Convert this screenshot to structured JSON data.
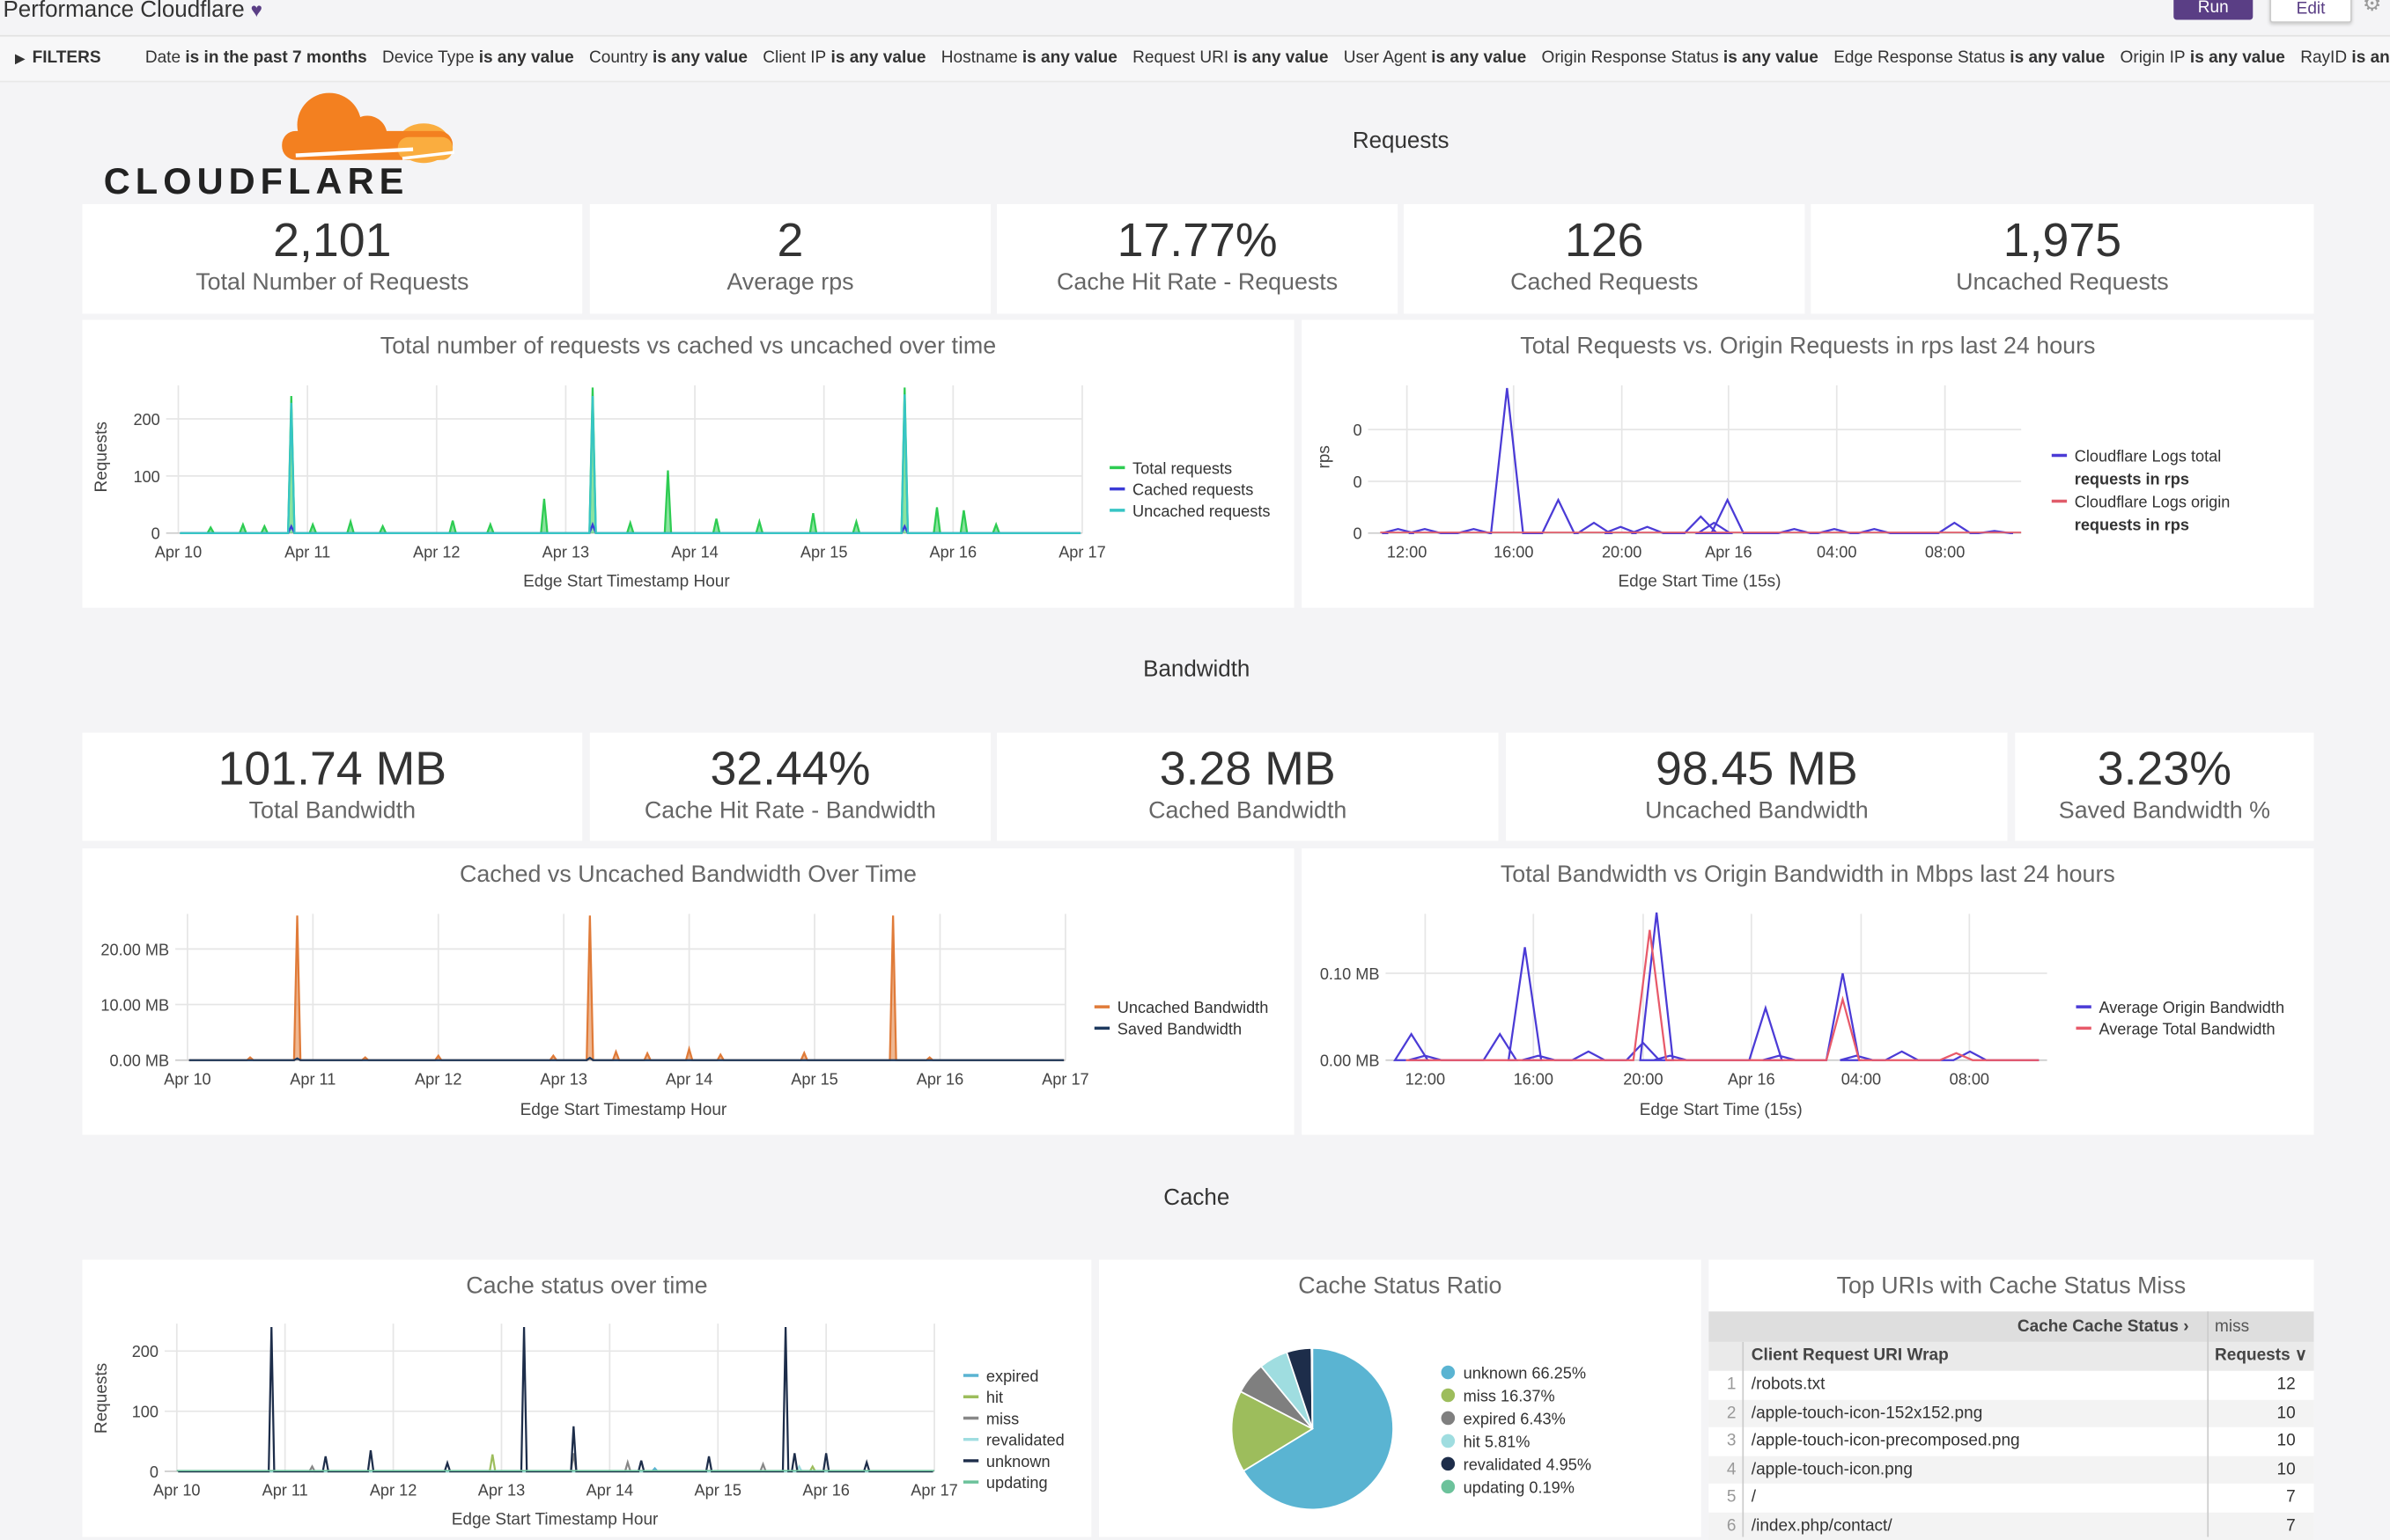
{
  "header": {
    "title": "Performance Cloudflare",
    "heart_icon": "heart-icon",
    "run_label": "Run",
    "edit_label": "Edit",
    "gear_icon": "gear-icon"
  },
  "filters": {
    "label": "FILTERS",
    "items": [
      {
        "field": "Date",
        "condition": "is in the past 7 months"
      },
      {
        "field": "Device Type",
        "condition": "is any value"
      },
      {
        "field": "Country",
        "condition": "is any value"
      },
      {
        "field": "Client IP",
        "condition": "is any value"
      },
      {
        "field": "Hostname",
        "condition": "is any value"
      },
      {
        "field": "Request URI",
        "condition": "is any value"
      },
      {
        "field": "User Agent",
        "condition": "is any value"
      },
      {
        "field": "Origin Response Status",
        "condition": "is any value"
      },
      {
        "field": "Edge Response Status",
        "condition": "is any value"
      },
      {
        "field": "Origin IP",
        "condition": "is any value"
      },
      {
        "field": "RayID",
        "condition": "is any valu..."
      }
    ]
  },
  "logo": {
    "text": "CLOUDFLARE",
    "colors": {
      "orange": "#f38020",
      "light_orange": "#faad3f"
    }
  },
  "sections": {
    "requests": "Requests",
    "bandwidth": "Bandwidth",
    "cache": "Cache"
  },
  "requests_kpis": [
    {
      "value": "2,101",
      "label": "Total Number of Requests"
    },
    {
      "value": "2",
      "label": "Average rps"
    },
    {
      "value": "17.77%",
      "label": "Cache Hit Rate - Requests"
    },
    {
      "value": "126",
      "label": "Cached Requests"
    },
    {
      "value": "1,975",
      "label": "Uncached Requests"
    }
  ],
  "bandwidth_kpis": [
    {
      "value": "101.74 MB",
      "label": "Total Bandwidth"
    },
    {
      "value": "32.44%",
      "label": "Cache Hit Rate - Bandwidth"
    },
    {
      "value": "3.28 MB",
      "label": "Cached Bandwidth"
    },
    {
      "value": "98.45 MB",
      "label": "Uncached Bandwidth"
    },
    {
      "value": "3.23%",
      "label": "Saved Bandwidth %"
    }
  ],
  "chart_data": [
    {
      "id": "requests_over_time",
      "type": "area",
      "title": "Total number of requests vs cached vs uncached over time",
      "xlabel": "Edge Start Timestamp Hour",
      "ylabel": "Requests",
      "xticks": [
        "Apr 10",
        "Apr 11",
        "Apr 12",
        "Apr 13",
        "Apr 14",
        "Apr 15",
        "Apr 16",
        "Apr 17"
      ],
      "yticks": [
        {
          "v": 0,
          "label": "0"
        },
        {
          "v": 100,
          "label": "100"
        },
        {
          "v": 200,
          "label": "200"
        }
      ],
      "legend": "right",
      "grid": true,
      "series": [
        {
          "name": "Total requests",
          "color": "#2ecc52",
          "fill": true,
          "points": [
            [
              "Apr 10 06:00",
              10
            ],
            [
              "Apr 10 12:00",
              15
            ],
            [
              "Apr 10 16:00",
              12
            ],
            [
              "Apr 10 21:00",
              240
            ],
            [
              "Apr 11 01:00",
              15
            ],
            [
              "Apr 11 08:00",
              20
            ],
            [
              "Apr 11 14:00",
              12
            ],
            [
              "Apr 12 03:00",
              22
            ],
            [
              "Apr 12 10:00",
              15
            ],
            [
              "Apr 12 20:00",
              60
            ],
            [
              "Apr 13 05:00",
              255
            ],
            [
              "Apr 13 12:00",
              18
            ],
            [
              "Apr 13 19:00",
              110
            ],
            [
              "Apr 14 04:00",
              25
            ],
            [
              "Apr 14 12:00",
              20
            ],
            [
              "Apr 14 22:00",
              35
            ],
            [
              "Apr 15 06:00",
              20
            ],
            [
              "Apr 15 15:00",
              255
            ],
            [
              "Apr 15 21:00",
              45
            ],
            [
              "Apr 16 02:00",
              40
            ],
            [
              "Apr 16 08:00",
              15
            ]
          ]
        },
        {
          "name": "Cached requests",
          "color": "#3b3bd6",
          "fill": false,
          "points": [
            [
              "Apr 10 21:00",
              12
            ],
            [
              "Apr 13 05:00",
              15
            ],
            [
              "Apr 15 15:00",
              12
            ]
          ]
        },
        {
          "name": "Uncached requests",
          "color": "#37c5c5",
          "fill": false,
          "points": [
            [
              "Apr 10 21:00",
              228
            ],
            [
              "Apr 13 05:00",
              240
            ],
            [
              "Apr 15 15:00",
              243
            ]
          ]
        }
      ]
    },
    {
      "id": "rps_24h",
      "type": "line",
      "title": "Total Requests vs. Origin Requests in rps last 24 hours",
      "xlabel": "Edge Start Time (15s)",
      "ylabel": "rps",
      "xticks": [
        "12:00",
        "16:00",
        "20:00",
        "Apr 16",
        "04:00",
        "08:00"
      ],
      "yticks": [
        {
          "v": 0,
          "label": "0"
        },
        {
          "v": 0.25,
          "label": "0"
        },
        {
          "v": 0.5,
          "label": "0"
        }
      ],
      "legend": "right",
      "grid": true,
      "series": [
        {
          "name": "Cloudflare Logs total requests in rps",
          "color": "#4b3bd6",
          "points": [
            [
              "Apr 15 11:40",
              0.02
            ],
            [
              "Apr 15 12:40",
              0.02
            ],
            [
              "Apr 15 14:30",
              0.02
            ],
            [
              "Apr 15 15:45",
              0.7
            ],
            [
              "Apr 15 17:40",
              0.16
            ],
            [
              "Apr 15 19:00",
              0.05
            ],
            [
              "Apr 15 20:00",
              0.03
            ],
            [
              "Apr 15 21:00",
              0.03
            ],
            [
              "Apr 15 23:00",
              0.08
            ],
            [
              "Apr 15 23:30",
              0.05
            ],
            [
              "Apr 16 00:00",
              0.16
            ],
            [
              "Apr 16 02:30",
              0.02
            ],
            [
              "Apr 16 04:00",
              0.02
            ],
            [
              "Apr 16 05:30",
              0.02
            ],
            [
              "Apr 16 08:30",
              0.05
            ],
            [
              "Apr 16 10:00",
              0.01
            ]
          ]
        },
        {
          "name": "Cloudflare Logs origin requests in rps",
          "color": "#e05c6a",
          "points": []
        }
      ]
    },
    {
      "id": "bandwidth_over_time",
      "type": "area",
      "title": "Cached vs Uncached Bandwidth Over Time",
      "xlabel": "Edge Start Timestamp Hour",
      "ylabel": "",
      "xticks": [
        "Apr 10",
        "Apr 11",
        "Apr 12",
        "Apr 13",
        "Apr 14",
        "Apr 15",
        "Apr 16",
        "Apr 17"
      ],
      "yticks": [
        {
          "v": 0,
          "label": "0.00 MB"
        },
        {
          "v": 10,
          "label": "10.00 MB"
        },
        {
          "v": 20,
          "label": "20.00 MB"
        }
      ],
      "legend": "right",
      "grid": true,
      "series": [
        {
          "name": "Uncached Bandwidth",
          "color": "#e07b39",
          "fill": true,
          "points": [
            [
              "Apr 10 12:00",
              0.5
            ],
            [
              "Apr 10 21:00",
              26
            ],
            [
              "Apr 11 10:00",
              0.5
            ],
            [
              "Apr 12 00:00",
              0.8
            ],
            [
              "Apr 12 22:00",
              0.8
            ],
            [
              "Apr 13 05:00",
              26
            ],
            [
              "Apr 13 10:00",
              1.5
            ],
            [
              "Apr 13 16:00",
              1.2
            ],
            [
              "Apr 14 00:00",
              2
            ],
            [
              "Apr 14 06:00",
              1
            ],
            [
              "Apr 14 22:00",
              1.3
            ],
            [
              "Apr 15 15:00",
              26
            ],
            [
              "Apr 15 22:00",
              0.5
            ]
          ]
        },
        {
          "name": "Saved Bandwidth",
          "color": "#1e3a5f",
          "fill": false,
          "points": [
            [
              "Apr 10 21:00",
              0.3
            ],
            [
              "Apr 13 05:00",
              0.4
            ]
          ]
        }
      ]
    },
    {
      "id": "bandwidth_24h",
      "type": "line",
      "title": "Total Bandwidth vs Origin Bandwidth in Mbps last 24 hours",
      "xlabel": "Edge Start Time (15s)",
      "ylabel": "",
      "xticks": [
        "12:00",
        "16:00",
        "20:00",
        "Apr 16",
        "04:00",
        "08:00"
      ],
      "yticks": [
        {
          "v": 0,
          "label": "0.00 MB"
        },
        {
          "v": 0.1,
          "label": "0.10 MB"
        }
      ],
      "legend": "right",
      "grid": true,
      "series": [
        {
          "name": "Average Origin Bandwidth",
          "color": "#4b3bd6",
          "points": [
            [
              "Apr 15 11:30",
              0.03
            ],
            [
              "Apr 15 12:00",
              0.005
            ],
            [
              "Apr 15 14:45",
              0.03
            ],
            [
              "Apr 15 15:40",
              0.13
            ],
            [
              "Apr 15 16:10",
              0.005
            ],
            [
              "Apr 15 18:00",
              0.01
            ],
            [
              "Apr 15 20:00",
              0.02
            ],
            [
              "Apr 15 20:30",
              0.17
            ],
            [
              "Apr 15 21:00",
              0.005
            ],
            [
              "Apr 16 00:30",
              0.06
            ],
            [
              "Apr 16 01:00",
              0.005
            ],
            [
              "Apr 16 03:20",
              0.1
            ],
            [
              "Apr 16 03:50",
              0.005
            ],
            [
              "Apr 16 05:30",
              0.01
            ],
            [
              "Apr 16 08:00",
              0.01
            ]
          ]
        },
        {
          "name": "Average Total Bandwidth",
          "color": "#e85a6a",
          "points": [
            [
              "Apr 15 20:15",
              0.15
            ],
            [
              "Apr 16 03:20",
              0.07
            ],
            [
              "Apr 16 07:30",
              0.008
            ]
          ]
        }
      ]
    },
    {
      "id": "cache_status_over_time",
      "type": "line",
      "title": "Cache status over time",
      "xlabel": "Edge Start Timestamp Hour",
      "ylabel": "Requests",
      "xticks": [
        "Apr 10",
        "Apr 11",
        "Apr 12",
        "Apr 13",
        "Apr 14",
        "Apr 15",
        "Apr 16",
        "Apr 17"
      ],
      "yticks": [
        {
          "v": 0,
          "label": "0"
        },
        {
          "v": 100,
          "label": "100"
        },
        {
          "v": 200,
          "label": "200"
        }
      ],
      "legend": "right",
      "grid": true,
      "series": [
        {
          "name": "expired",
          "color": "#5ab4d2",
          "points": [
            [
              "Apr 14 10:00",
              5
            ]
          ]
        },
        {
          "name": "hit",
          "color": "#9dbd5c",
          "points": [
            [
              "Apr 12 22:00",
              28
            ],
            [
              "Apr 15 21:00",
              8
            ]
          ]
        },
        {
          "name": "miss",
          "color": "#888888",
          "points": [
            [
              "Apr 11 06:00",
              8
            ],
            [
              "Apr 13 16:00",
              30
            ],
            [
              "Apr 14 04:00",
              15
            ],
            [
              "Apr 15 10:00",
              12
            ]
          ]
        },
        {
          "name": "revalidated",
          "color": "#9fdde0",
          "points": [
            [
              "Apr 15 18:00",
              8
            ]
          ]
        },
        {
          "name": "unknown",
          "color": "#1d2d4a",
          "points": [
            [
              "Apr 10 21:00",
              240
            ],
            [
              "Apr 11 09:00",
              25
            ],
            [
              "Apr 11 19:00",
              35
            ],
            [
              "Apr 12 12:00",
              14
            ],
            [
              "Apr 13 05:00",
              240
            ],
            [
              "Apr 13 16:00",
              75
            ],
            [
              "Apr 14 07:00",
              18
            ],
            [
              "Apr 14 22:00",
              25
            ],
            [
              "Apr 15 15:00",
              240
            ],
            [
              "Apr 15 17:00",
              30
            ],
            [
              "Apr 16 00:00",
              30
            ],
            [
              "Apr 16 09:00",
              15
            ]
          ]
        },
        {
          "name": "updating",
          "color": "#6cc29b",
          "points": []
        }
      ]
    },
    {
      "id": "cache_status_ratio",
      "type": "pie",
      "title": "Cache Status Ratio",
      "legend": "right",
      "slices": [
        {
          "name": "unknown",
          "value": 66.25,
          "label": "unknown 66.25%",
          "color": "#5ab4d2"
        },
        {
          "name": "miss",
          "value": 16.37,
          "label": "miss 16.37%",
          "color": "#9dbd5c"
        },
        {
          "name": "expired",
          "value": 6.43,
          "label": "expired 6.43%",
          "color": "#7f7f7f"
        },
        {
          "name": "hit",
          "value": 5.81,
          "label": "hit 5.81%",
          "color": "#9fdde0"
        },
        {
          "name": "revalidated",
          "value": 4.95,
          "label": "revalidated 4.95%",
          "color": "#1d2d4a"
        },
        {
          "name": "updating",
          "value": 0.19,
          "label": "updating 0.19%",
          "color": "#6cc29b"
        }
      ]
    }
  ],
  "top_uris": {
    "title": "Top URIs with Cache Status Miss",
    "pivot_label": "Cache Cache Status",
    "pivot_value": "miss",
    "col_uri": "Client Request URI Wrap",
    "col_requests": "Requests",
    "rows": [
      {
        "index": "1",
        "uri": "/robots.txt",
        "requests": "12"
      },
      {
        "index": "2",
        "uri": "/apple-touch-icon-152x152.png",
        "requests": "10"
      },
      {
        "index": "3",
        "uri": "/apple-touch-icon-precomposed.png",
        "requests": "10"
      },
      {
        "index": "4",
        "uri": "/apple-touch-icon.png",
        "requests": "10"
      },
      {
        "index": "5",
        "uri": "/",
        "requests": "7"
      },
      {
        "index": "6",
        "uri": "/index.php/contact/",
        "requests": "7"
      }
    ]
  }
}
